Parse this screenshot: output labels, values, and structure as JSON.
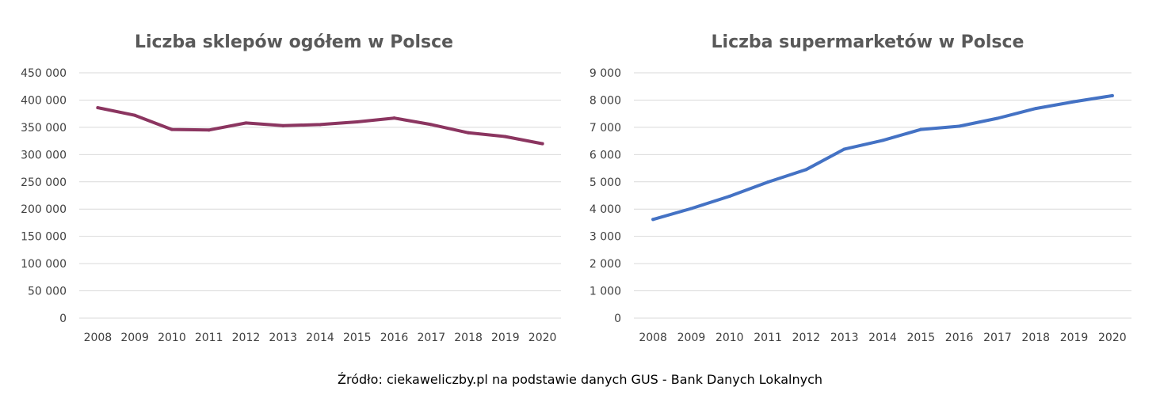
{
  "source": "Źródło: ciekaweliczby.pl na podstawie danych GUS - Bank Danych Lokalnych",
  "chart_data": [
    {
      "type": "line",
      "title": "Liczba sklepów ogółem w Polsce",
      "xlabel": "",
      "ylabel": "",
      "categories": [
        "2008",
        "2009",
        "2010",
        "2011",
        "2012",
        "2013",
        "2014",
        "2015",
        "2016",
        "2017",
        "2018",
        "2019",
        "2020"
      ],
      "series": [
        {
          "values": [
            386000,
            372000,
            346000,
            345000,
            358000,
            353000,
            355000,
            360000,
            367000,
            355000,
            340000,
            333000,
            320000
          ],
          "color": "#8B3560"
        }
      ],
      "ylim": [
        0,
        450000
      ],
      "yticks": [
        0,
        50000,
        100000,
        150000,
        200000,
        250000,
        300000,
        350000,
        400000,
        450000
      ],
      "ytick_labels": [
        "0",
        "50 000",
        "100 000",
        "150 000",
        "200 000",
        "250 000",
        "300 000",
        "350 000",
        "400 000",
        "450 000"
      ],
      "grid": true,
      "legend": "none"
    },
    {
      "type": "line",
      "title": "Liczba supermarketów w Polsce",
      "xlabel": "",
      "ylabel": "",
      "categories": [
        "2008",
        "2009",
        "2010",
        "2011",
        "2012",
        "2013",
        "2014",
        "2015",
        "2016",
        "2017",
        "2018",
        "2019",
        "2020"
      ],
      "series": [
        {
          "values": [
            3620,
            4020,
            4470,
            4990,
            5450,
            6200,
            6520,
            6920,
            7040,
            7330,
            7690,
            7940,
            8160
          ],
          "color": "#4472C4"
        }
      ],
      "ylim": [
        0,
        9000
      ],
      "yticks": [
        0,
        1000,
        2000,
        3000,
        4000,
        5000,
        6000,
        7000,
        8000,
        9000
      ],
      "ytick_labels": [
        "0",
        "1 000",
        "2 000",
        "3 000",
        "4 000",
        "5 000",
        "6 000",
        "7 000",
        "8 000",
        "9 000"
      ],
      "grid": true,
      "legend": "none"
    }
  ]
}
